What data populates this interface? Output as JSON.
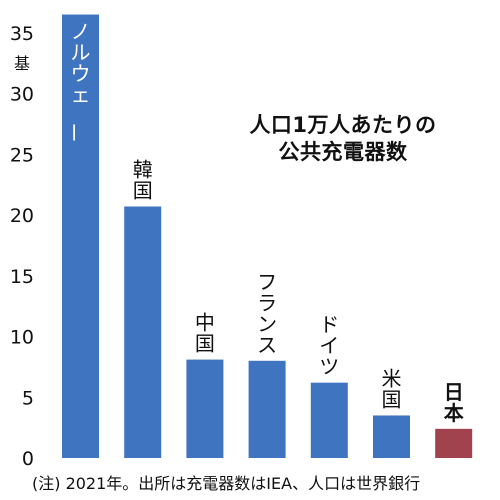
{
  "chart_data": {
    "type": "bar",
    "title_lines": [
      "人口1万人あたりの",
      "公共充電器数"
    ],
    "unit_label": "基",
    "categories": [
      "ノルウェー",
      "韓国",
      "中国",
      "フランス",
      "ドイツ",
      "米国",
      "日本"
    ],
    "label_orientation": [
      "vertical-inside",
      "vertical",
      "vertical",
      "vertical",
      "vertical",
      "vertical",
      "vertical-bold"
    ],
    "values": [
      36.5,
      20.7,
      8.1,
      8.0,
      6.2,
      3.5,
      2.4
    ],
    "yticks": [
      0,
      5,
      10,
      15,
      20,
      25,
      30,
      35
    ],
    "ylim": [
      0,
      37
    ],
    "grid": false,
    "legend": "none",
    "colors": {
      "bar": "#3f74c0",
      "highlight": "#a1434f",
      "axis": "#111111"
    },
    "highlight_index": 6
  },
  "note": "(注) 2021年。出所は充電器数はIEA、人口は世界銀行"
}
